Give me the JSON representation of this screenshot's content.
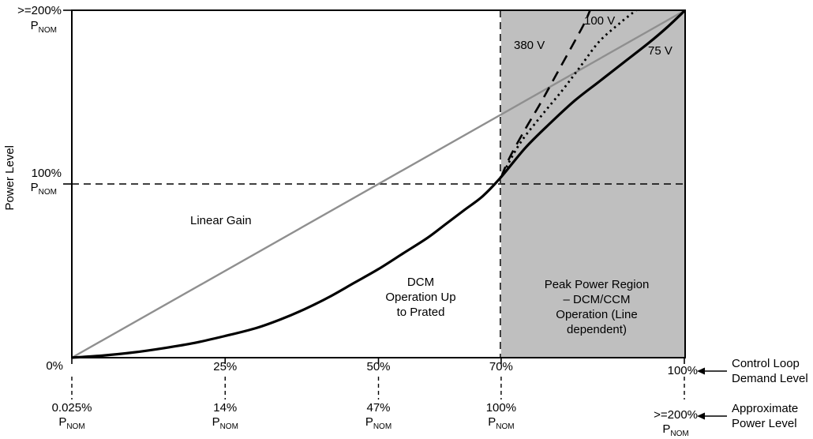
{
  "chart_data": {
    "type": "line",
    "y_axis": {
      "title": "Power Level",
      "range": [
        0,
        200
      ],
      "ticks": [
        {
          "value": 200,
          "label": ">=200%",
          "base": "P",
          "sub": "NOM"
        },
        {
          "value": 100,
          "label": "100%",
          "base": "P",
          "sub": "NOM"
        }
      ]
    },
    "x_axis": {
      "name_lines": [
        "Control Loop",
        "Demand Level"
      ],
      "range": [
        0,
        100
      ],
      "ticks": [
        {
          "value": 0,
          "label": "0%"
        },
        {
          "value": 25,
          "label": "25%"
        },
        {
          "value": 50,
          "label": "50%"
        },
        {
          "value": 70,
          "label": "70%"
        },
        {
          "value": 100,
          "label": "100%"
        }
      ]
    },
    "x_axis2": {
      "name_lines": [
        "Approximate",
        "Power Level"
      ],
      "ticks": [
        {
          "at": 0,
          "label": "0.025%",
          "base": "P",
          "sub": "NOM"
        },
        {
          "at": 25,
          "label": "14%",
          "base": "P",
          "sub": "NOM"
        },
        {
          "at": 50,
          "label": "47%",
          "base": "P",
          "sub": "NOM"
        },
        {
          "at": 70,
          "label": "100%",
          "base": "P",
          "sub": "NOM"
        },
        {
          "at": 100,
          "label": ">=200%",
          "base": "P",
          "sub": "NOM"
        }
      ]
    },
    "region": {
      "x_from": 70,
      "x_to": 100,
      "fill": "#bfbfbf",
      "label_lines": [
        "Peak Power Region",
        "– DCM/CCM",
        "Operation (Line",
        "dependent)"
      ]
    },
    "reference_lines": [
      {
        "axis": "y",
        "value": 100,
        "style": "dashed"
      },
      {
        "axis": "x",
        "value": 70,
        "style": "dashed"
      }
    ],
    "series": [
      {
        "id": "linear",
        "name": "Linear Gain",
        "style": "solid",
        "color": "#8f8f8f",
        "points": [
          [
            0,
            0
          ],
          [
            100,
            200
          ]
        ]
      },
      {
        "id": "v75",
        "name": "75 V",
        "style": "solid",
        "color": "#000000",
        "points": [
          [
            0,
            0
          ],
          [
            5,
            1.2
          ],
          [
            10,
            3
          ],
          [
            15,
            5.5
          ],
          [
            20,
            8.5
          ],
          [
            25,
            12.5
          ],
          [
            30,
            17
          ],
          [
            34,
            22
          ],
          [
            38,
            28
          ],
          [
            42,
            35
          ],
          [
            46,
            43
          ],
          [
            50,
            51
          ],
          [
            54,
            60
          ],
          [
            58,
            69
          ],
          [
            61,
            77
          ],
          [
            64,
            85
          ],
          [
            67,
            93
          ],
          [
            70,
            104
          ],
          [
            74,
            121
          ],
          [
            78,
            135
          ],
          [
            82,
            148
          ],
          [
            86,
            159
          ],
          [
            90,
            170
          ],
          [
            94,
            181
          ],
          [
            97,
            190
          ],
          [
            100,
            200
          ]
        ]
      },
      {
        "id": "v380",
        "name": "380 V",
        "style": "dashed",
        "color": "#000000",
        "points": [
          [
            70,
            104
          ],
          [
            71.5,
            116
          ],
          [
            74,
            132
          ],
          [
            76.5,
            147
          ],
          [
            79,
            163
          ],
          [
            81.5,
            179
          ],
          [
            83.5,
            192
          ],
          [
            84.5,
            200
          ]
        ]
      },
      {
        "id": "v100",
        "name": "100 V",
        "style": "dotted",
        "color": "#000000",
        "points": [
          [
            70,
            104
          ],
          [
            73,
            123
          ],
          [
            76.5,
            139
          ],
          [
            80,
            154
          ],
          [
            83,
            168
          ],
          [
            86,
            182
          ],
          [
            89.5,
            193
          ],
          [
            92,
            200
          ]
        ]
      }
    ],
    "annotations": {
      "dcm_lines": [
        "DCM",
        "Operation Up",
        "to Prated"
      ]
    }
  }
}
